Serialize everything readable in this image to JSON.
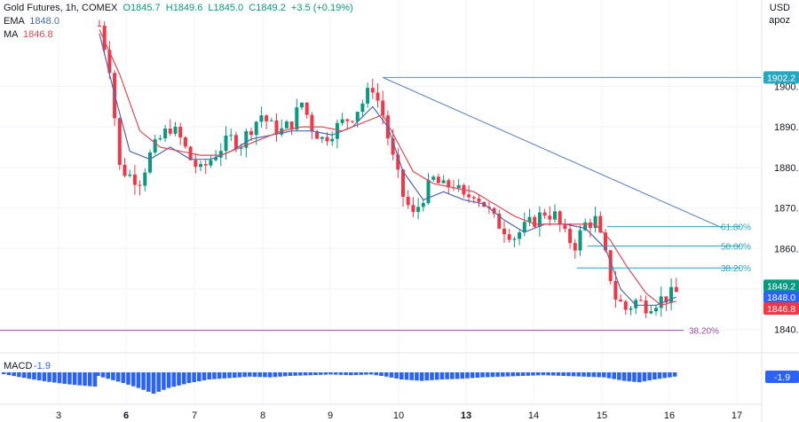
{
  "header": {
    "symbol_line": "Gold Futures, 1h, COMEX",
    "o_label": "O",
    "o_value": "1845.7",
    "h_label": "H",
    "h_value": "1849.6",
    "l_label": "L",
    "l_value": "1845.0",
    "c_label": "C",
    "c_value": "1849.2",
    "change": "+3.5 (+0.19%)",
    "ema_label": "EMA",
    "ema_value": "1848.0",
    "ma_label": "MA",
    "ma_value": "1846.8",
    "currency": "USD",
    "scale": "apoz"
  },
  "colors": {
    "up": "#089981",
    "down": "#f23645",
    "ema": "#4a69b0",
    "ma": "#d84b57",
    "trend": "#5b7fbd",
    "fib": "#26a7c0",
    "fib_lower": "#9c4ea8",
    "macd": "#2962ff",
    "grid": "#f0f3fa",
    "text": "#131722"
  },
  "chart_data": {
    "type": "candlestick",
    "title": "Gold Futures, 1h, COMEX",
    "y_ticks": [
      "1900.0",
      "1890.0",
      "1880.0",
      "1870.0",
      "1860.0",
      "1850.0",
      "1840.0"
    ],
    "ylim": [
      1836,
      1913
    ],
    "x_ticks": [
      "3",
      "6",
      "7",
      "8",
      "9",
      "10",
      "13",
      "14",
      "15",
      "16",
      "17"
    ],
    "anchors": [
      [
        0,
        1915
      ],
      [
        2,
        1905
      ],
      [
        4,
        1880
      ],
      [
        6,
        1878
      ],
      [
        8,
        1877
      ],
      [
        10,
        1883
      ],
      [
        12,
        1887
      ],
      [
        14,
        1890
      ],
      [
        16,
        1887
      ],
      [
        18,
        1882
      ],
      [
        20,
        1879
      ],
      [
        22,
        1882
      ],
      [
        24,
        1885
      ],
      [
        26,
        1887
      ],
      [
        28,
        1886
      ],
      [
        30,
        1890
      ],
      [
        32,
        1893
      ],
      [
        34,
        1890
      ],
      [
        36,
        1889
      ],
      [
        38,
        1891
      ],
      [
        40,
        1896
      ],
      [
        42,
        1890
      ],
      [
        44,
        1887
      ],
      [
        46,
        1889
      ],
      [
        48,
        1891
      ],
      [
        50,
        1893
      ],
      [
        52,
        1896
      ],
      [
        54,
        1900
      ],
      [
        56,
        1893
      ],
      [
        58,
        1882
      ],
      [
        60,
        1873
      ],
      [
        62,
        1868
      ],
      [
        64,
        1873
      ],
      [
        66,
        1877
      ],
      [
        68,
        1875
      ],
      [
        70,
        1876
      ],
      [
        72,
        1872
      ],
      [
        74,
        1874
      ],
      [
        76,
        1871
      ],
      [
        78,
        1867
      ],
      [
        80,
        1865
      ],
      [
        82,
        1863
      ],
      [
        84,
        1865
      ],
      [
        86,
        1867
      ],
      [
        88,
        1869
      ],
      [
        90,
        1868
      ],
      [
        92,
        1863
      ],
      [
        94,
        1861
      ],
      [
        96,
        1866
      ],
      [
        98,
        1867
      ],
      [
        100,
        1858
      ],
      [
        102,
        1848
      ],
      [
        104,
        1845
      ],
      [
        106,
        1847
      ],
      [
        108,
        1846
      ],
      [
        110,
        1847
      ],
      [
        112,
        1848
      ],
      [
        114,
        1849
      ]
    ],
    "candle_count": 115,
    "ema": [
      [
        0,
        1913
      ],
      [
        3,
        1898
      ],
      [
        6,
        1884
      ],
      [
        10,
        1882
      ],
      [
        14,
        1885
      ],
      [
        18,
        1882
      ],
      [
        22,
        1882
      ],
      [
        26,
        1884
      ],
      [
        30,
        1887
      ],
      [
        34,
        1888
      ],
      [
        38,
        1889
      ],
      [
        42,
        1889
      ],
      [
        46,
        1888
      ],
      [
        50,
        1890
      ],
      [
        54,
        1895
      ],
      [
        57,
        1890
      ],
      [
        60,
        1879
      ],
      [
        64,
        1872
      ],
      [
        68,
        1874
      ],
      [
        72,
        1872
      ],
      [
        76,
        1871
      ],
      [
        80,
        1867
      ],
      [
        84,
        1864
      ],
      [
        88,
        1866
      ],
      [
        92,
        1866
      ],
      [
        96,
        1865
      ],
      [
        100,
        1860
      ],
      [
        103,
        1850
      ],
      [
        106,
        1846
      ],
      [
        110,
        1846
      ],
      [
        114,
        1848
      ]
    ],
    "ma": [
      [
        0,
        1914
      ],
      [
        4,
        1903
      ],
      [
        8,
        1889
      ],
      [
        12,
        1885
      ],
      [
        16,
        1884
      ],
      [
        20,
        1883
      ],
      [
        24,
        1883
      ],
      [
        28,
        1885
      ],
      [
        32,
        1887
      ],
      [
        36,
        1889
      ],
      [
        40,
        1890
      ],
      [
        44,
        1890
      ],
      [
        48,
        1889
      ],
      [
        52,
        1891
      ],
      [
        56,
        1893
      ],
      [
        59,
        1886
      ],
      [
        62,
        1879
      ],
      [
        66,
        1876
      ],
      [
        70,
        1875
      ],
      [
        74,
        1874
      ],
      [
        78,
        1871
      ],
      [
        82,
        1868
      ],
      [
        86,
        1866
      ],
      [
        90,
        1866
      ],
      [
        94,
        1866
      ],
      [
        98,
        1866
      ],
      [
        101,
        1862
      ],
      [
        104,
        1856
      ],
      [
        108,
        1849
      ],
      [
        111,
        1846
      ],
      [
        114,
        1847
      ]
    ],
    "macd_label": "MACD",
    "macd_value": "-1.9",
    "macd_hist": [
      [
        0,
        -0.5
      ],
      [
        5,
        -1.5
      ],
      [
        8,
        -2.2
      ],
      [
        11,
        -3.0
      ],
      [
        14,
        -2.2
      ],
      [
        18,
        -1.5
      ],
      [
        22,
        -1.0
      ],
      [
        26,
        -0.8
      ],
      [
        30,
        -0.6
      ],
      [
        34,
        -0.7
      ],
      [
        38,
        -0.5
      ],
      [
        42,
        -0.4
      ],
      [
        46,
        -0.3
      ],
      [
        50,
        -0.4
      ],
      [
        54,
        -0.3
      ],
      [
        57,
        -0.6
      ],
      [
        60,
        -1.0
      ],
      [
        64,
        -1.2
      ],
      [
        68,
        -1.0
      ],
      [
        72,
        -0.9
      ],
      [
        76,
        -0.7
      ],
      [
        80,
        -0.6
      ],
      [
        84,
        -0.5
      ],
      [
        88,
        -0.4
      ],
      [
        92,
        -0.5
      ],
      [
        96,
        -0.6
      ],
      [
        100,
        -0.7
      ],
      [
        104,
        -1.2
      ],
      [
        107,
        -1.4
      ],
      [
        110,
        -1.0
      ],
      [
        114,
        -0.6
      ]
    ],
    "levels": {
      "last_price": "1849.2",
      "ema_price": "1848.0",
      "ma_price": "1846.8",
      "high_price": "1902.2",
      "fib_618": "61.80%",
      "fib_500": "50.00%",
      "fib_382": "38.20%",
      "fib_382_low": "38.20%"
    },
    "level_values": {
      "high": 1902.2,
      "fib_618": 1865.4,
      "fib_500": 1860.6,
      "fib_382": 1855.2,
      "fib_382_low": 1839.8,
      "trend_from": [
        56,
        1902.2
      ],
      "trend_to": [
        114,
        1866.0
      ]
    }
  }
}
